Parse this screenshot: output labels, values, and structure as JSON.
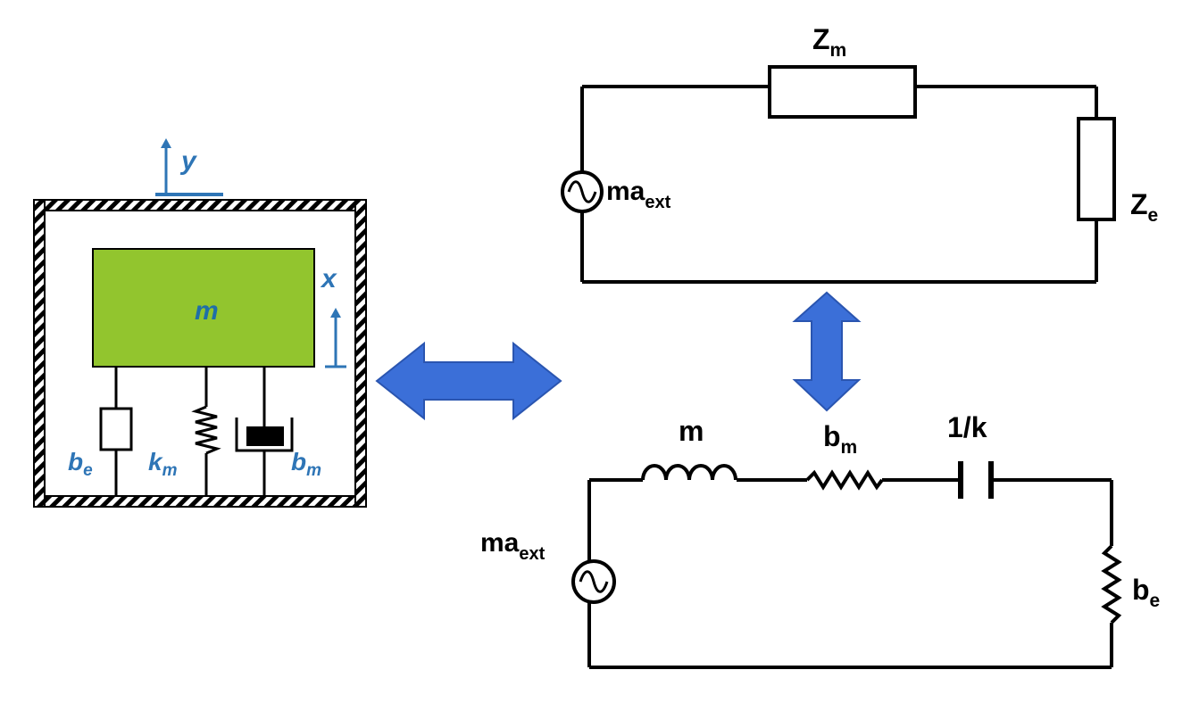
{
  "colors": {
    "mass_fill": "#92c52e",
    "axis_blue": "#2e75b6",
    "arrow_blue": "#3b6fd8",
    "line_black": "#000000"
  },
  "mechanical": {
    "displacement_y": "y",
    "displacement_x": "x",
    "mass_label": "m",
    "be_label": "b",
    "be_sub": "e",
    "km_label": "k",
    "km_sub": "m",
    "bm_label": "b",
    "bm_sub": "m"
  },
  "circuit_top": {
    "source_label": "ma",
    "source_sub": "ext",
    "zm_label": "Z",
    "zm_sub": "m",
    "ze_label": "Z",
    "ze_sub": "e"
  },
  "circuit_bottom": {
    "source_label": "ma",
    "source_sub": "ext",
    "inductor_label": "m",
    "resistor_label": "b",
    "resistor_sub": "m",
    "capacitor_label": "1/k",
    "load_label": "b",
    "load_sub": "e"
  },
  "icons": {
    "double_arrow_horizontal": "double-arrow-horizontal-icon",
    "double_arrow_vertical": "double-arrow-vertical-icon",
    "ac_source": "ac-source-icon"
  }
}
